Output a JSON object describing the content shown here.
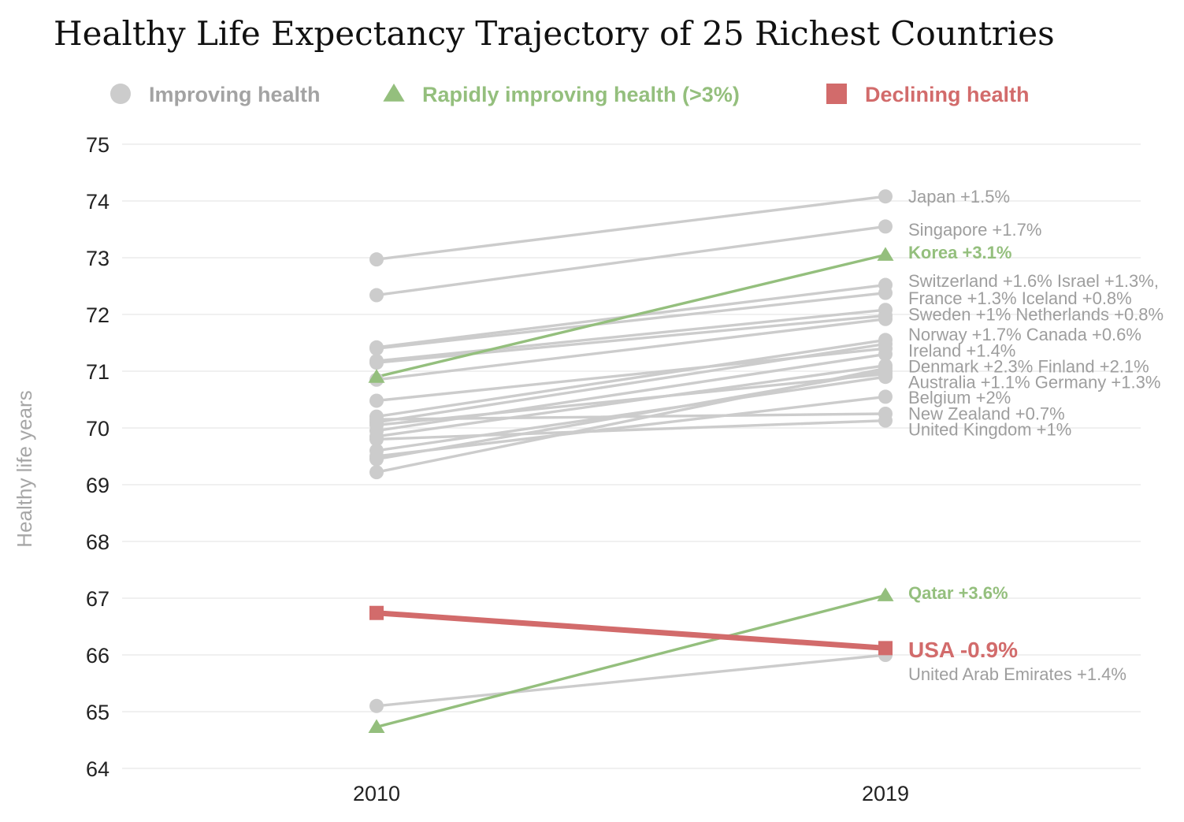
{
  "title": "Healthy Life Expectancy Trajectory of 25 Richest Countries",
  "colors": {
    "improving": "#cccccc",
    "rapid": "#94bf7d",
    "declining": "#d26b6b",
    "grid": "#ebebeb",
    "tick_text": "#222222",
    "ylabel_text": "#a6a6a6"
  },
  "chart_data": {
    "type": "line",
    "subtype": "slope",
    "xlabel": "",
    "ylabel": "Healthy life years",
    "x": [
      "2010",
      "2019"
    ],
    "ylim": [
      64,
      75
    ],
    "yticks": [
      64,
      65,
      66,
      67,
      68,
      69,
      70,
      71,
      72,
      73,
      74,
      75
    ],
    "grid": true,
    "legend": {
      "position": "top",
      "entries": [
        {
          "key": "improving",
          "label": "Improving health",
          "marker": "circle"
        },
        {
          "key": "rapid",
          "label": "Rapidly improving health (>3%)",
          "marker": "triangle"
        },
        {
          "key": "declining",
          "label": "Declining health",
          "marker": "square"
        }
      ]
    },
    "series": [
      {
        "group": "improving",
        "values": [
          72.97,
          74.08
        ]
      },
      {
        "group": "improving",
        "values": [
          72.34,
          73.55
        ]
      },
      {
        "group": "improving",
        "values": [
          71.42,
          72.52
        ]
      },
      {
        "group": "improving",
        "values": [
          71.4,
          72.38
        ]
      },
      {
        "group": "improving",
        "values": [
          71.18,
          72.08
        ]
      },
      {
        "group": "improving",
        "values": [
          71.15,
          71.98
        ]
      },
      {
        "group": "improving",
        "values": [
          70.85,
          71.92
        ]
      },
      {
        "group": "improving",
        "values": [
          70.2,
          71.55
        ]
      },
      {
        "group": "improving",
        "values": [
          70.1,
          71.48
        ]
      },
      {
        "group": "improving",
        "values": [
          70.48,
          71.4
        ]
      },
      {
        "group": "improving",
        "values": [
          69.95,
          71.3
        ]
      },
      {
        "group": "improving",
        "values": [
          69.85,
          71.1
        ]
      },
      {
        "group": "improving",
        "values": [
          69.22,
          71.05
        ]
      },
      {
        "group": "improving",
        "values": [
          69.45,
          71.0
        ]
      },
      {
        "group": "improving",
        "values": [
          70.05,
          70.95
        ]
      },
      {
        "group": "improving",
        "values": [
          69.6,
          70.9
        ]
      },
      {
        "group": "improving",
        "values": [
          69.5,
          70.55
        ]
      },
      {
        "group": "improving",
        "values": [
          70.15,
          70.25
        ]
      },
      {
        "group": "improving",
        "values": [
          69.8,
          70.13
        ]
      },
      {
        "group": "improving",
        "values": [
          65.1,
          66.0
        ]
      },
      {
        "group": "rapid",
        "values": [
          70.9,
          73.05
        ]
      },
      {
        "group": "rapid",
        "values": [
          64.73,
          67.05
        ]
      },
      {
        "group": "declining",
        "values": [
          66.74,
          66.12
        ]
      }
    ],
    "labels": [
      {
        "text": "Japan +1.5%",
        "y": 74.08,
        "group": "improving"
      },
      {
        "text": "Singapore +1.7%",
        "y": 73.5,
        "group": "improving"
      },
      {
        "text": "Korea +3.1%",
        "y": 73.1,
        "group": "rapid"
      },
      {
        "text": "Switzerland +1.6% Israel +1.3%,",
        "y": 72.6,
        "group": "improving"
      },
      {
        "text": "France +1.3% Iceland +0.8%",
        "y": 72.29,
        "group": "improving"
      },
      {
        "text": "Sweden +1% Netherlands +0.8%",
        "y": 72.01,
        "group": "improving"
      },
      {
        "text": "Norway +1.7% Canada +0.6%",
        "y": 71.65,
        "group": "improving"
      },
      {
        "text": "Ireland +1.4%",
        "y": 71.37,
        "group": "improving"
      },
      {
        "text": "Denmark +2.3% Finland +2.1%",
        "y": 71.09,
        "group": "improving"
      },
      {
        "text": "Australia +1.1% Germany +1.3%",
        "y": 70.81,
        "group": "improving"
      },
      {
        "text": "Belgium +2%",
        "y": 70.54,
        "group": "improving"
      },
      {
        "text": "New Zealand +0.7%",
        "y": 70.26,
        "group": "improving"
      },
      {
        "text": "United Kingdom +1%",
        "y": 69.98,
        "group": "improving"
      },
      {
        "text": "Qatar +3.6%",
        "y": 67.1,
        "group": "rapid"
      },
      {
        "text": "USA -0.9%",
        "y": 66.1,
        "group": "declining"
      },
      {
        "text": "United Arab Emirates +1.4%",
        "y": 65.67,
        "group": "improving"
      }
    ]
  }
}
